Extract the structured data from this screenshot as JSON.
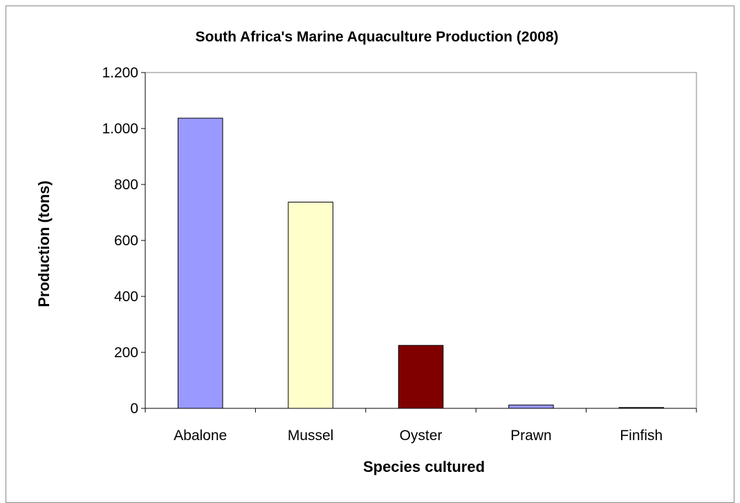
{
  "chart_data": {
    "type": "bar",
    "title": "South Africa's Marine Aquaculture Production (2008)",
    "xlabel": "Species cultured",
    "ylabel": "Production (tons)",
    "categories": [
      "Abalone",
      "Mussel",
      "Oyster",
      "Prawn",
      "Finfish"
    ],
    "values": [
      1037,
      737,
      225,
      12,
      3
    ],
    "ylim": [
      0,
      1200
    ],
    "yticks": [
      0,
      200,
      400,
      600,
      800,
      1000,
      1200
    ],
    "ytick_labels": [
      "0",
      "200",
      "400",
      "600",
      "800",
      "1.000",
      "1.200"
    ],
    "bar_colors": [
      "#9999FF",
      "#FFFFCC",
      "#800000",
      "#9999FF",
      "#333366"
    ],
    "grid": false,
    "legend": "none"
  }
}
